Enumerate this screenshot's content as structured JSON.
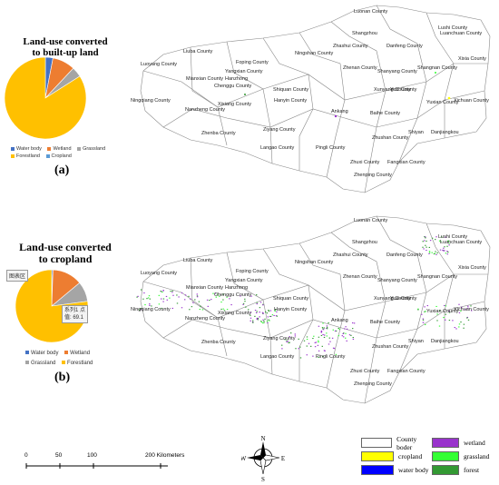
{
  "panel_a": {
    "title_line1": "Land-use converted",
    "title_line2": "to built-up land",
    "label": "(a)",
    "legend": [
      {
        "name": "Water body",
        "color": "#4472c4"
      },
      {
        "name": "Wetland",
        "color": "#ed7d31"
      },
      {
        "name": "Grassland",
        "color": "#a5a5a5"
      },
      {
        "name": "Forestland",
        "color": "#ffc000"
      },
      {
        "name": "Cropland",
        "color": "#5b9bd5"
      }
    ]
  },
  "panel_b": {
    "title_line1": "Land-use converted",
    "title_line2": "to cropland",
    "label": "(b)",
    "chart_area_badge": "图表区",
    "tooltip_line1": "系列1 点",
    "tooltip_line2": "值: 69.1",
    "legend": [
      {
        "name": "Water body",
        "color": "#4472c4"
      },
      {
        "name": "Wetland",
        "color": "#ed7d31"
      },
      {
        "name": "Grassland",
        "color": "#a5a5a5"
      },
      {
        "name": "Forestland",
        "color": "#ffc000"
      }
    ]
  },
  "chart_data": [
    {
      "type": "pie",
      "title": "Land-use converted to built-up land",
      "categories": [
        "Water body",
        "Wetland",
        "Grassland",
        "Forestland",
        "Cropland"
      ],
      "values": [
        3,
        9,
        4,
        84,
        0
      ],
      "colors": [
        "#4472c4",
        "#ed7d31",
        "#a5a5a5",
        "#ffc000",
        "#5b9bd5"
      ]
    },
    {
      "type": "pie",
      "title": "Land-use converted to cropland",
      "categories": [
        "Water body",
        "Wetland",
        "Grassland",
        "Forestland"
      ],
      "values": [
        0.5,
        12,
        8,
        69.1
      ],
      "colors": [
        "#4472c4",
        "#ed7d31",
        "#a5a5a5",
        "#ffc000"
      ]
    }
  ],
  "counties": [
    "Luonan County",
    "Lushi County",
    "Shangzhou",
    "Luanchuan County",
    "Liuba County",
    "Ningshan County",
    "Zhashui County",
    "Danfeng County",
    "Luoyang County",
    "Foping County",
    "Xixia County",
    "Mianxian County",
    "Hanzhong",
    "Yangxian County",
    "Zhenan County",
    "Shanyang County",
    "Shangnan County",
    "Chenggu County",
    "Ningqiang County",
    "Shiquan County",
    "Xunyang County",
    "Yuxi County",
    "Xixiang County",
    "Hanyin County",
    "Yuxian County",
    "Xichuan County",
    "Nanzheng County",
    "Ankang",
    "Baihe County",
    "Zhenba County",
    "Ziyang County",
    "Shiyan",
    "Danjiangkou",
    "Zhushan County",
    "Langao County",
    "Pingli County",
    "Fangxian County",
    "Zhuxi County",
    "Zhenping County"
  ],
  "map_legend": [
    {
      "name": "County boder",
      "color": "#ffffff"
    },
    {
      "name": "wetland",
      "color": "#9933cc"
    },
    {
      "name": "cropland",
      "color": "#ffff00"
    },
    {
      "name": "grassland",
      "color": "#33ff33"
    },
    {
      "name": "water body",
      "color": "#0000ff"
    },
    {
      "name": "forest",
      "color": "#339933"
    }
  ],
  "scale_bar": {
    "ticks": [
      "0",
      "50",
      "100",
      "200 Kilometers"
    ]
  },
  "compass": {
    "n": "N",
    "s": "S",
    "e": "E",
    "w": "W"
  }
}
